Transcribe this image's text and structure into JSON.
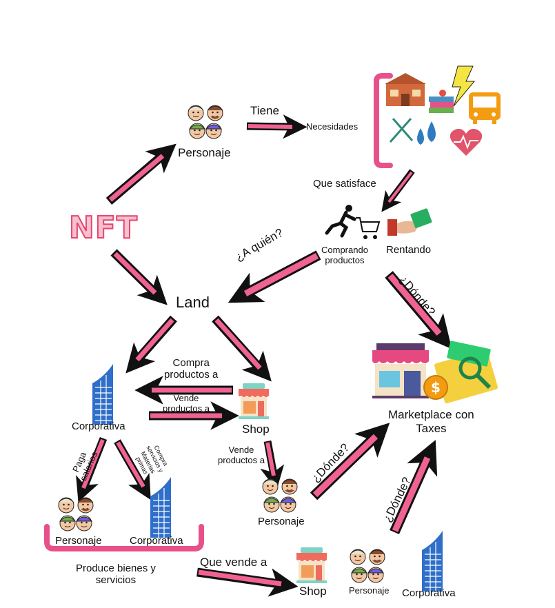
{
  "nodes": {
    "nft": "NFT",
    "personaje_top": "Personaje",
    "necesidades": "Necesidades",
    "comprando": "Comprando\nproductos",
    "rentando": "Rentando",
    "land": "Land",
    "corporativa_left": "Corporativa",
    "shop_mid": "Shop",
    "marketplace": "Marketplace con\nTaxes",
    "personaje_mid": "Personaje",
    "personaje_bottom_left": "Personaje",
    "corporativa_bottom_left": "Corporativa",
    "produce": "Produce bienes y\nservicios",
    "shop_bottom": "Shop",
    "personaje_bottom_right": "Personaje",
    "corporativa_bottom_right": "Corporativa"
  },
  "edges": {
    "tiene": "Tiene",
    "que_satisface": "Que satisface",
    "a_quien": "¿A quién?",
    "donde_1": "¿Dónde?",
    "compra_productos_a": "Compra\nproductos a",
    "vende_productos_a_1": "Vende\nproductos a",
    "vende_productos_a_2": "Vende\nproductos a",
    "paga_salarios": "Paga\nsalarios",
    "compra_servicios": "Compra\nservicios y\nMaterias\nprimas",
    "donde_2": "¿Dónde?",
    "donde_3": "¿Dónde?",
    "que_vende_a": "Que vende a"
  },
  "icons": [
    "house-icon",
    "books-icon",
    "lightning-icon",
    "bus-icon",
    "cutlery-icon",
    "water-drops-icon",
    "heart-pulse-icon",
    "shopper-cart-icon",
    "money-hand-icon",
    "store-icon",
    "money-magnifier-icon",
    "building-icon",
    "people-group-icon"
  ],
  "colors": {
    "arrow_fill": "#f06292",
    "arrow_stroke": "#111111",
    "bracket": "#e8508a",
    "building": "#2f6fc9",
    "nft_text": "#e4476f"
  }
}
